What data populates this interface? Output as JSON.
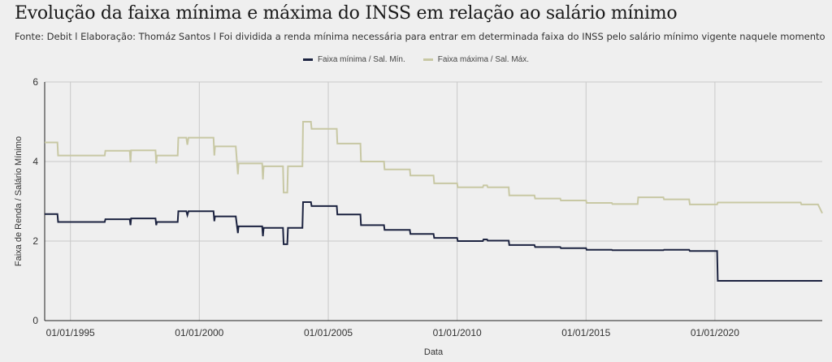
{
  "header": {
    "title": "Evolução da faixa mínima e máxima do INSS em relação ao salário mínimo",
    "subtitle": "Fonte: Debit l Elaboração: Thomáz Santos l Foi dividida a renda mínima necessária para entrar em determinada faixa do INSS pelo salário mínimo vigente naquele momento"
  },
  "chart_data": {
    "type": "line",
    "xlabel": "Data",
    "ylabel": "Faixa de Renda / Salário Mínimo",
    "ylim": [
      0,
      6
    ],
    "xlim": [
      "1994-01-01",
      "2024-03-01"
    ],
    "yticks": [
      "0",
      "2",
      "4",
      "6"
    ],
    "xticks": [
      {
        "date": "1995-01-01",
        "label": "01/01/1995"
      },
      {
        "date": "2000-01-01",
        "label": "01/01/2000"
      },
      {
        "date": "2005-01-01",
        "label": "01/01/2005"
      },
      {
        "date": "2010-01-01",
        "label": "01/01/2010"
      },
      {
        "date": "2015-01-01",
        "label": "01/01/2015"
      },
      {
        "date": "2020-01-01",
        "label": "01/01/2020"
      }
    ],
    "grid": true,
    "legend_position": "top",
    "series": [
      {
        "name": "Faixa mínima / Sal. Mín.",
        "color": "#1c2340",
        "points": [
          [
            "1994-01-01",
            2.68
          ],
          [
            "1994-07-01",
            2.68
          ],
          [
            "1994-07-10",
            2.48
          ],
          [
            "1996-05-01",
            2.48
          ],
          [
            "1996-05-10",
            2.55
          ],
          [
            "1997-04-20",
            2.55
          ],
          [
            "1997-05-01",
            2.4
          ],
          [
            "1997-05-10",
            2.57
          ],
          [
            "1998-04-20",
            2.57
          ],
          [
            "1998-05-01",
            2.4
          ],
          [
            "1998-05-10",
            2.48
          ],
          [
            "1999-03-01",
            2.48
          ],
          [
            "1999-03-10",
            2.75
          ],
          [
            "1999-07-01",
            2.75
          ],
          [
            "1999-07-15",
            2.65
          ],
          [
            "1999-08-01",
            2.75
          ],
          [
            "2000-07-20",
            2.75
          ],
          [
            "2000-08-01",
            2.5
          ],
          [
            "2000-08-10",
            2.62
          ],
          [
            "2001-06-01",
            2.62
          ],
          [
            "2001-07-01",
            2.2
          ],
          [
            "2001-07-10",
            2.37
          ],
          [
            "2002-06-10",
            2.37
          ],
          [
            "2002-06-20",
            2.12
          ],
          [
            "2002-07-01",
            2.33
          ],
          [
            "2003-04-01",
            2.33
          ],
          [
            "2003-04-10",
            1.92
          ],
          [
            "2003-06-01",
            1.92
          ],
          [
            "2003-06-10",
            2.33
          ],
          [
            "2004-01-01",
            2.33
          ],
          [
            "2004-01-10",
            2.98
          ],
          [
            "2004-05-01",
            2.98
          ],
          [
            "2004-05-10",
            2.88
          ],
          [
            "2005-05-01",
            2.88
          ],
          [
            "2005-05-10",
            2.67
          ],
          [
            "2006-04-01",
            2.67
          ],
          [
            "2006-04-10",
            2.4
          ],
          [
            "2007-03-01",
            2.4
          ],
          [
            "2007-03-10",
            2.28
          ],
          [
            "2008-03-01",
            2.28
          ],
          [
            "2008-03-10",
            2.18
          ],
          [
            "2009-02-01",
            2.18
          ],
          [
            "2009-02-10",
            2.08
          ],
          [
            "2010-01-01",
            2.08
          ],
          [
            "2010-01-10",
            2.0
          ],
          [
            "2011-01-01",
            2.0
          ],
          [
            "2011-01-10",
            2.04
          ],
          [
            "2011-03-01",
            2.04
          ],
          [
            "2011-03-10",
            2.01
          ],
          [
            "2012-01-01",
            2.01
          ],
          [
            "2012-01-10",
            1.9
          ],
          [
            "2013-01-01",
            1.9
          ],
          [
            "2013-01-10",
            1.85
          ],
          [
            "2014-01-01",
            1.85
          ],
          [
            "2014-01-10",
            1.82
          ],
          [
            "2015-01-01",
            1.82
          ],
          [
            "2015-01-10",
            1.78
          ],
          [
            "2016-01-01",
            1.78
          ],
          [
            "2016-01-10",
            1.77
          ],
          [
            "2018-01-01",
            1.77
          ],
          [
            "2018-01-10",
            1.78
          ],
          [
            "2019-01-01",
            1.78
          ],
          [
            "2019-01-10",
            1.75
          ],
          [
            "2020-02-01",
            1.75
          ],
          [
            "2020-02-10",
            1.0
          ],
          [
            "2024-03-01",
            1.0
          ]
        ]
      },
      {
        "name": "Faixa máxima / Sal. Máx.",
        "color": "#c8c8a4",
        "points": [
          [
            "1994-01-01",
            4.48
          ],
          [
            "1994-07-01",
            4.48
          ],
          [
            "1994-07-10",
            4.15
          ],
          [
            "1996-05-01",
            4.15
          ],
          [
            "1996-05-10",
            4.27
          ],
          [
            "1997-04-20",
            4.27
          ],
          [
            "1997-05-01",
            3.98
          ],
          [
            "1997-05-10",
            4.28
          ],
          [
            "1998-04-20",
            4.28
          ],
          [
            "1998-05-01",
            3.95
          ],
          [
            "1998-05-10",
            4.15
          ],
          [
            "1999-03-01",
            4.15
          ],
          [
            "1999-03-10",
            4.6
          ],
          [
            "1999-07-01",
            4.6
          ],
          [
            "1999-07-15",
            4.42
          ],
          [
            "1999-08-01",
            4.6
          ],
          [
            "2000-07-20",
            4.6
          ],
          [
            "2000-08-01",
            4.15
          ],
          [
            "2000-08-10",
            4.38
          ],
          [
            "2001-06-01",
            4.38
          ],
          [
            "2001-07-01",
            3.68
          ],
          [
            "2001-07-10",
            3.95
          ],
          [
            "2002-06-10",
            3.95
          ],
          [
            "2002-06-20",
            3.55
          ],
          [
            "2002-07-01",
            3.88
          ],
          [
            "2003-04-01",
            3.88
          ],
          [
            "2003-04-10",
            3.22
          ],
          [
            "2003-06-01",
            3.22
          ],
          [
            "2003-06-10",
            3.88
          ],
          [
            "2004-01-01",
            3.88
          ],
          [
            "2004-01-10",
            5.0
          ],
          [
            "2004-05-01",
            5.0
          ],
          [
            "2004-05-10",
            4.82
          ],
          [
            "2005-05-01",
            4.82
          ],
          [
            "2005-05-10",
            4.45
          ],
          [
            "2006-04-01",
            4.45
          ],
          [
            "2006-04-10",
            4.0
          ],
          [
            "2007-03-01",
            4.0
          ],
          [
            "2007-03-10",
            3.8
          ],
          [
            "2008-03-01",
            3.8
          ],
          [
            "2008-03-10",
            3.65
          ],
          [
            "2009-02-01",
            3.65
          ],
          [
            "2009-02-10",
            3.45
          ],
          [
            "2010-01-01",
            3.45
          ],
          [
            "2010-01-10",
            3.35
          ],
          [
            "2011-01-01",
            3.35
          ],
          [
            "2011-01-10",
            3.4
          ],
          [
            "2011-03-01",
            3.4
          ],
          [
            "2011-03-10",
            3.35
          ],
          [
            "2012-01-01",
            3.35
          ],
          [
            "2012-01-10",
            3.15
          ],
          [
            "2013-01-01",
            3.15
          ],
          [
            "2013-01-10",
            3.07
          ],
          [
            "2014-01-01",
            3.07
          ],
          [
            "2014-01-10",
            3.02
          ],
          [
            "2015-01-01",
            3.02
          ],
          [
            "2015-01-10",
            2.96
          ],
          [
            "2016-01-01",
            2.96
          ],
          [
            "2016-01-10",
            2.93
          ],
          [
            "2017-01-01",
            2.93
          ],
          [
            "2017-01-10",
            3.1
          ],
          [
            "2018-01-01",
            3.1
          ],
          [
            "2018-01-10",
            3.05
          ],
          [
            "2019-01-01",
            3.05
          ],
          [
            "2019-01-10",
            2.92
          ],
          [
            "2020-02-01",
            2.92
          ],
          [
            "2020-02-10",
            2.97
          ],
          [
            "2023-05-01",
            2.97
          ],
          [
            "2023-05-10",
            2.92
          ],
          [
            "2024-01-01",
            2.92
          ],
          [
            "2024-03-01",
            2.7
          ]
        ]
      }
    ]
  }
}
